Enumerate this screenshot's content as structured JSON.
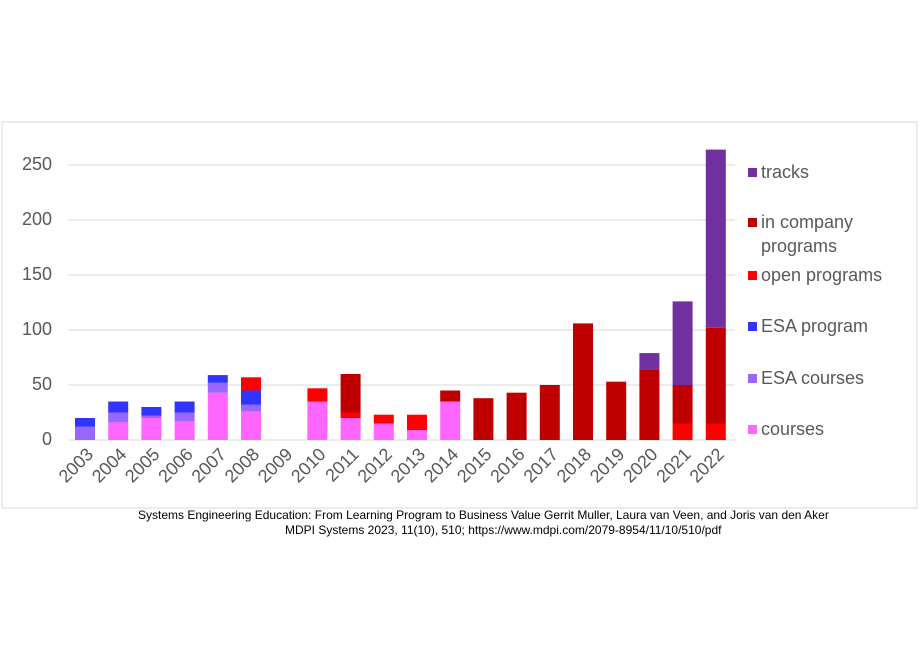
{
  "chart_data": {
    "type": "stacked_bar",
    "categories": [
      "2003",
      "2004",
      "2005",
      "2006",
      "2007",
      "2008",
      "2009",
      "2010",
      "2011",
      "2012",
      "2013",
      "2014",
      "2015",
      "2016",
      "2017",
      "2018",
      "2019",
      "2020",
      "2021",
      "2022"
    ],
    "series": [
      {
        "name": "courses",
        "color": "#ff66ff",
        "values": [
          0,
          16,
          20,
          17,
          43,
          26,
          0,
          35,
          20,
          15,
          9,
          35,
          0,
          0,
          0,
          0,
          0,
          0,
          0,
          0
        ]
      },
      {
        "name": "ESA courses",
        "color": "#9966ff",
        "values": [
          12,
          9,
          2,
          8,
          9,
          6,
          0,
          0,
          0,
          0,
          0,
          0,
          0,
          0,
          0,
          0,
          0,
          0,
          0,
          0
        ]
      },
      {
        "name": "ESA program",
        "color": "#3333ff",
        "values": [
          8,
          10,
          8,
          10,
          7,
          13,
          0,
          0,
          0,
          0,
          0,
          0,
          0,
          0,
          0,
          0,
          0,
          0,
          0,
          0
        ]
      },
      {
        "name": "open programs",
        "color": "#ff0000",
        "values": [
          0,
          0,
          0,
          0,
          0,
          12,
          0,
          12,
          5,
          8,
          14,
          0,
          0,
          0,
          0,
          0,
          0,
          0,
          15,
          15
        ]
      },
      {
        "name": "in company programs",
        "color": "#c00000",
        "values": [
          0,
          0,
          0,
          0,
          0,
          0,
          0,
          0,
          35,
          0,
          0,
          10,
          38,
          43,
          50,
          106,
          53,
          64,
          35,
          87
        ]
      },
      {
        "name": "tracks",
        "color": "#7030a0",
        "values": [
          0,
          0,
          0,
          0,
          0,
          0,
          0,
          0,
          0,
          0,
          0,
          0,
          0,
          0,
          0,
          0,
          0,
          15,
          76,
          162
        ]
      }
    ],
    "ylim": [
      0,
      275
    ],
    "yticks": [
      0,
      50,
      100,
      150,
      200,
      250
    ],
    "grid": true,
    "legend": "right",
    "caption_lines": [
      "Systems Engineering Education: From Learning Program to Business Value Gerrit Muller, Laura van Veen, and Joris van den Aker",
      "MDPI Systems 2023, 11(10), 510; https://www.mdpi.com/2079-8954/11/10/510/pdf"
    ]
  }
}
